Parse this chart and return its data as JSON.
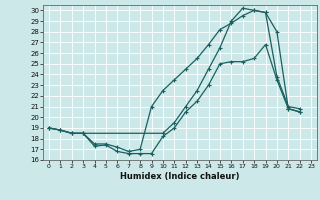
{
  "title": "",
  "xlabel": "Humidex (Indice chaleur)",
  "xlim": [
    -0.5,
    23.5
  ],
  "ylim": [
    16,
    30.5
  ],
  "yticks": [
    16,
    17,
    18,
    19,
    20,
    21,
    22,
    23,
    24,
    25,
    26,
    27,
    28,
    29,
    30
  ],
  "xticks": [
    0,
    1,
    2,
    3,
    4,
    5,
    6,
    7,
    8,
    9,
    10,
    11,
    12,
    13,
    14,
    15,
    16,
    17,
    18,
    19,
    20,
    21,
    22,
    23
  ],
  "bg_color": "#cce8e8",
  "line_color": "#1a6060",
  "grid_color": "#ffffff",
  "curve1_x": [
    0,
    1,
    2,
    3,
    4,
    5,
    6,
    7,
    8,
    9,
    10,
    11,
    12,
    13,
    14,
    15,
    16,
    17,
    18,
    19,
    20,
    21,
    22
  ],
  "curve1_y": [
    19.0,
    18.8,
    18.5,
    18.5,
    17.3,
    17.4,
    16.8,
    16.6,
    16.6,
    16.6,
    18.2,
    19.0,
    20.5,
    21.5,
    23.0,
    25.0,
    25.2,
    25.2,
    25.5,
    26.8,
    23.5,
    20.8,
    20.5
  ],
  "curve2_x": [
    0,
    1,
    2,
    3,
    4,
    5,
    6,
    7,
    8,
    9,
    10,
    11,
    12,
    13,
    14,
    15,
    16,
    17,
    18,
    19,
    20,
    21,
    22
  ],
  "curve2_y": [
    19.0,
    18.8,
    18.5,
    18.5,
    17.5,
    17.5,
    17.2,
    16.8,
    17.0,
    21.0,
    22.5,
    23.5,
    24.5,
    25.5,
    26.8,
    28.2,
    28.8,
    29.5,
    30.0,
    29.8,
    23.8,
    21.0,
    20.8
  ],
  "curve3_x": [
    0,
    1,
    2,
    3,
    10,
    11,
    12,
    13,
    14,
    15,
    16,
    17,
    18,
    19,
    20,
    21,
    22
  ],
  "curve3_y": [
    19.0,
    18.8,
    18.5,
    18.5,
    18.5,
    19.5,
    21.0,
    22.5,
    24.5,
    26.5,
    29.0,
    30.2,
    30.0,
    29.8,
    28.0,
    20.8,
    20.5
  ]
}
